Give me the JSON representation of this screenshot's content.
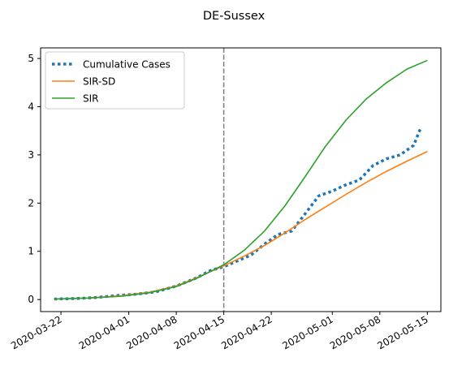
{
  "chart_data": {
    "type": "line",
    "title": "DE-Sussex",
    "xlabel": "",
    "ylabel": "",
    "x_ticks": [
      "2020-03-22",
      "2020-04-01",
      "2020-04-08",
      "2020-04-15",
      "2020-04-22",
      "2020-05-01",
      "2020-05-08",
      "2020-05-15"
    ],
    "y_ticks": [
      "0",
      "1",
      "2",
      "3",
      "4",
      "5"
    ],
    "xlim": [
      "2020-03-19",
      "2020-05-17"
    ],
    "ylim": [
      -0.25,
      5.22
    ],
    "vline": {
      "x": "2020-04-15",
      "style": "dashed",
      "color": "#808080"
    },
    "legend_position": "top-left",
    "grid": false,
    "series": [
      {
        "name": "Cumulative Cases",
        "style": "dotted",
        "color": "#1f77b4",
        "x": [
          "2020-03-21",
          "2020-03-24",
          "2020-03-27",
          "2020-03-30",
          "2020-04-02",
          "2020-04-05",
          "2020-04-08",
          "2020-04-11",
          "2020-04-13",
          "2020-04-15",
          "2020-04-17",
          "2020-04-19",
          "2020-04-21",
          "2020-04-23",
          "2020-04-25",
          "2020-04-27",
          "2020-04-29",
          "2020-05-01",
          "2020-05-03",
          "2020-05-05",
          "2020-05-07",
          "2020-05-09",
          "2020-05-11",
          "2020-05-13",
          "2020-05-14"
        ],
        "y": [
          0.01,
          0.02,
          0.04,
          0.08,
          0.11,
          0.16,
          0.28,
          0.45,
          0.6,
          0.68,
          0.8,
          0.92,
          1.15,
          1.35,
          1.42,
          1.78,
          2.15,
          2.25,
          2.38,
          2.48,
          2.78,
          2.92,
          3.0,
          3.2,
          3.55
        ]
      },
      {
        "name": "SIR-SD",
        "style": "solid",
        "color": "#ff7f0e",
        "x": [
          "2020-03-21",
          "2020-03-26",
          "2020-03-31",
          "2020-04-04",
          "2020-04-08",
          "2020-04-11",
          "2020-04-15",
          "2020-04-18",
          "2020-04-21",
          "2020-04-24",
          "2020-04-27",
          "2020-04-30",
          "2020-05-03",
          "2020-05-06",
          "2020-05-09",
          "2020-05-12",
          "2020-05-15"
        ],
        "y": [
          0.01,
          0.03,
          0.08,
          0.15,
          0.28,
          0.45,
          0.7,
          0.9,
          1.12,
          1.38,
          1.66,
          1.92,
          2.18,
          2.43,
          2.66,
          2.87,
          3.07
        ]
      },
      {
        "name": "SIR",
        "style": "solid",
        "color": "#2ca02c",
        "x": [
          "2020-03-21",
          "2020-03-26",
          "2020-03-31",
          "2020-04-04",
          "2020-04-08",
          "2020-04-11",
          "2020-04-15",
          "2020-04-18",
          "2020-04-21",
          "2020-04-24",
          "2020-04-27",
          "2020-04-30",
          "2020-05-03",
          "2020-05-06",
          "2020-05-09",
          "2020-05-12",
          "2020-05-15"
        ],
        "y": [
          0.01,
          0.03,
          0.07,
          0.14,
          0.27,
          0.44,
          0.72,
          1.02,
          1.42,
          1.94,
          2.55,
          3.18,
          3.72,
          4.16,
          4.5,
          4.78,
          4.96
        ]
      }
    ]
  }
}
